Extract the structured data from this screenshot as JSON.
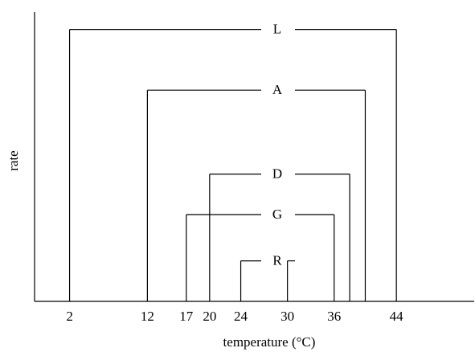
{
  "chart_data": {
    "type": "bracket",
    "x_label": "temperature (°C)",
    "y_label": "rate",
    "categories": [
      "L",
      "A",
      "D",
      "G",
      "R"
    ],
    "low": [
      2,
      12,
      20,
      17,
      24
    ],
    "high": [
      44,
      40,
      38,
      36,
      30
    ],
    "values": [
      94,
      73,
      44,
      30,
      14
    ],
    "xlim": [
      -2.5,
      54
    ],
    "xticks": [
      2,
      12,
      17,
      20,
      24,
      30,
      36,
      44
    ],
    "ylim": [
      0,
      100
    ],
    "color": "#000000"
  }
}
